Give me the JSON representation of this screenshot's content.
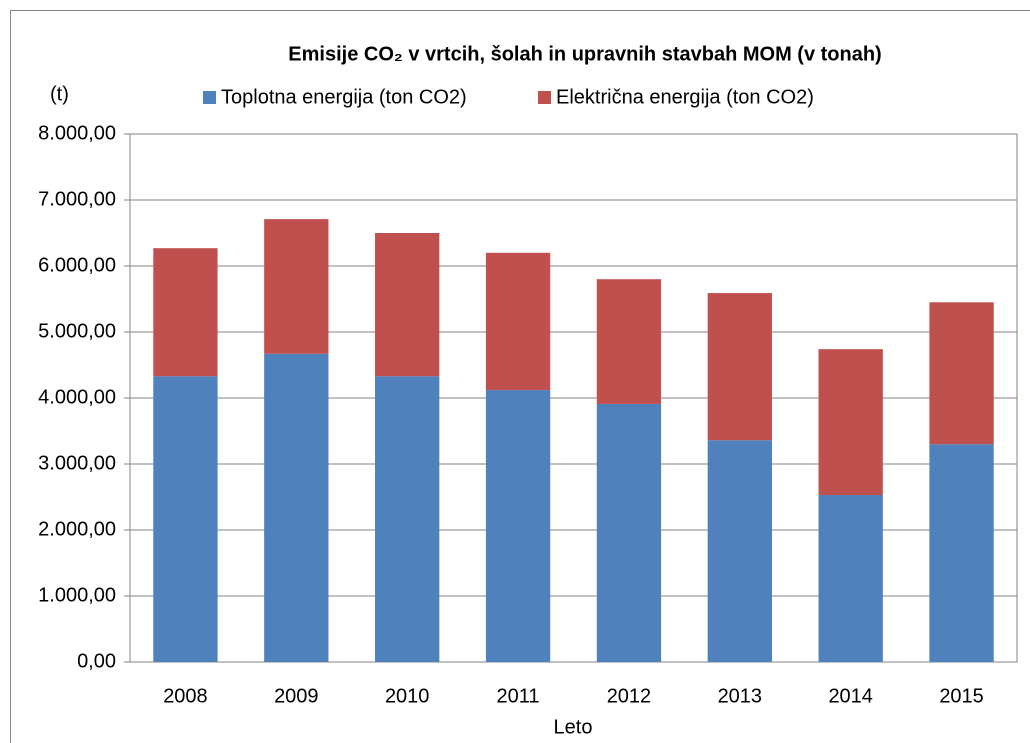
{
  "chart_data": {
    "type": "stacked_bar",
    "title": "Emisije CO₂ v vrtcih, šolah in upravnih stavbah MOM (v tonah)",
    "y_label": "(t)",
    "x_label": "Leto",
    "categories": [
      "2008",
      "2009",
      "2010",
      "2011",
      "2012",
      "2013",
      "2014",
      "2015"
    ],
    "series": [
      {
        "name": "Toplotna energija (ton CO2)",
        "color": "#4f81bd",
        "values": [
          4330,
          4670,
          4330,
          4120,
          3910,
          3360,
          2530,
          3300
        ]
      },
      {
        "name": "Električna energija (ton CO2)",
        "color": "#c0504d",
        "values": [
          1940,
          2040,
          2170,
          2080,
          1890,
          2230,
          2210,
          2150
        ]
      }
    ],
    "ylim": [
      0,
      8000
    ],
    "yticks": [
      {
        "value": 0,
        "label": "0,00"
      },
      {
        "value": 1000,
        "label": "1.000,00"
      },
      {
        "value": 2000,
        "label": "2.000,00"
      },
      {
        "value": 3000,
        "label": "3.000,00"
      },
      {
        "value": 4000,
        "label": "4.000,00"
      },
      {
        "value": 5000,
        "label": "5.000,00"
      },
      {
        "value": 6000,
        "label": "6.000,00"
      },
      {
        "value": 7000,
        "label": "7.000,00"
      },
      {
        "value": 8000,
        "label": "8.000,00"
      }
    ],
    "grid": true,
    "legend": "top"
  }
}
